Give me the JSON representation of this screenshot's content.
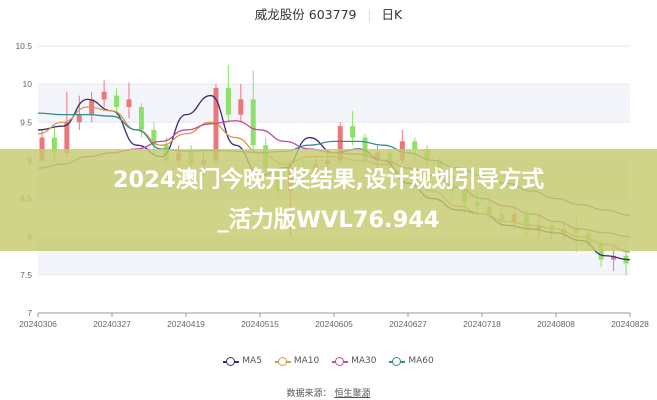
{
  "header": {
    "stock": "威龙股份 603779",
    "period": "日K"
  },
  "banner": {
    "line1": "2024澳门今晚开奖结果,设计规划引导方式",
    "line2": "_活力版WVL76.944"
  },
  "source": {
    "label": "数据来源：",
    "value": "恒生聚源"
  },
  "chart_data": {
    "type": "candlestick",
    "ylim": [
      7,
      10.5
    ],
    "yticks": [
      "10.5",
      "10",
      "9.5",
      "9",
      "8.5",
      "8",
      "7.5",
      "7"
    ],
    "xticks": [
      "20240306",
      "20240327",
      "20240419",
      "20240515",
      "20240605",
      "20240627",
      "20240718",
      "20240808",
      "20240828"
    ],
    "colors": {
      "up": "#e8787a",
      "down": "#8ee06a",
      "MA5": "#3b2a7a",
      "MA10": "#d49a4a",
      "MA30": "#c44a9a",
      "MA60": "#3a8a8a"
    },
    "legend": [
      "MA5",
      "MA10",
      "MA30",
      "MA60"
    ],
    "candles": [
      [
        9.0,
        9.3,
        8.95,
        9.4
      ],
      [
        9.3,
        9.1,
        9.0,
        9.45
      ],
      [
        9.1,
        9.5,
        9.05,
        9.9
      ],
      [
        9.5,
        9.6,
        9.4,
        9.85
      ],
      [
        9.6,
        9.8,
        9.5,
        9.9
      ],
      [
        9.8,
        9.9,
        9.7,
        10.05
      ],
      [
        9.85,
        9.7,
        9.6,
        9.95
      ],
      [
        9.7,
        9.8,
        9.55,
        10.02
      ],
      [
        9.7,
        9.4,
        9.3,
        9.75
      ],
      [
        9.4,
        9.2,
        9.1,
        9.5
      ],
      [
        9.2,
        9.0,
        8.95,
        9.3
      ],
      [
        9.0,
        9.1,
        8.9,
        9.2
      ],
      [
        9.1,
        8.95,
        8.9,
        9.2
      ],
      [
        8.95,
        9.0,
        8.8,
        9.1
      ],
      [
        9.0,
        9.95,
        8.95,
        10.0
      ],
      [
        9.95,
        9.6,
        9.5,
        10.25
      ],
      [
        9.6,
        9.8,
        9.5,
        10.0
      ],
      [
        9.8,
        9.2,
        9.1,
        10.18
      ],
      [
        9.2,
        8.9,
        8.8,
        9.3
      ],
      [
        8.9,
        8.6,
        8.5,
        9.0
      ],
      [
        8.6,
        8.9,
        8.0,
        9.0
      ],
      [
        8.9,
        8.8,
        8.7,
        9.0
      ],
      [
        8.8,
        8.95,
        8.7,
        9.05
      ],
      [
        8.95,
        9.0,
        8.8,
        9.1
      ],
      [
        9.0,
        9.45,
        8.95,
        9.5
      ],
      [
        9.45,
        9.3,
        9.2,
        9.65
      ],
      [
        9.3,
        9.0,
        8.95,
        9.35
      ],
      [
        9.0,
        9.1,
        8.9,
        9.2
      ],
      [
        9.1,
        9.0,
        8.9,
        9.15
      ],
      [
        9.0,
        9.25,
        8.95,
        9.4
      ],
      [
        9.25,
        9.15,
        9.0,
        9.3
      ],
      [
        9.15,
        9.0,
        8.9,
        9.2
      ],
      [
        9.0,
        8.8,
        8.7,
        9.05
      ],
      [
        8.8,
        8.6,
        8.5,
        8.9
      ],
      [
        8.6,
        8.45,
        8.3,
        8.7
      ],
      [
        8.45,
        8.4,
        8.3,
        8.6
      ],
      [
        8.4,
        8.3,
        8.2,
        8.55
      ],
      [
        8.3,
        8.2,
        8.1,
        8.4
      ],
      [
        8.2,
        8.3,
        8.1,
        8.4
      ],
      [
        8.3,
        8.1,
        8.0,
        8.35
      ],
      [
        8.1,
        8.15,
        8.0,
        8.3
      ],
      [
        8.15,
        8.05,
        7.95,
        8.2
      ],
      [
        8.05,
        8.1,
        7.95,
        8.2
      ],
      [
        8.1,
        8.05,
        7.8,
        8.25
      ],
      [
        8.05,
        7.9,
        7.85,
        8.1
      ],
      [
        7.9,
        7.7,
        7.6,
        7.95
      ],
      [
        7.7,
        7.75,
        7.55,
        7.9
      ],
      [
        7.75,
        7.65,
        7.5,
        7.85
      ]
    ],
    "series": [
      {
        "name": "MA5",
        "values": [
          9.4,
          9.45,
          9.8,
          9.65,
          9.2,
          9.05,
          9.6,
          9.85,
          9.2,
          8.8,
          8.9,
          9.3,
          9.1,
          9.15,
          9.0,
          8.7,
          8.5,
          8.35,
          8.3,
          8.15,
          8.1,
          8.05,
          7.95,
          7.75,
          7.7
        ]
      },
      {
        "name": "MA10",
        "values": [
          9.35,
          9.5,
          9.7,
          9.65,
          9.4,
          9.2,
          9.35,
          9.5,
          9.3,
          9.1,
          8.95,
          9.05,
          9.05,
          9.0,
          8.95,
          8.8,
          8.6,
          8.4,
          8.3,
          8.2,
          8.15,
          8.1,
          8.0,
          7.9,
          7.8
        ]
      },
      {
        "name": "MA30",
        "values": [
          8.9,
          8.95,
          9.05,
          9.1,
          9.15,
          9.25,
          9.4,
          9.48,
          9.52,
          9.4,
          9.25,
          9.15,
          9.1,
          9.08,
          9.0,
          8.9,
          8.8,
          8.65,
          8.5,
          8.4,
          8.3,
          8.2,
          8.1,
          8.05,
          8.0
        ]
      },
      {
        "name": "MA60",
        "values": [
          9.62,
          9.6,
          9.6,
          9.58,
          9.4,
          9.15,
          9.12,
          9.13,
          9.12,
          9.1,
          9.12,
          9.2,
          9.25,
          9.25,
          9.2,
          9.1,
          9.0,
          8.9,
          8.8,
          8.7,
          8.6,
          8.5,
          8.42,
          8.35,
          8.28
        ]
      }
    ]
  }
}
